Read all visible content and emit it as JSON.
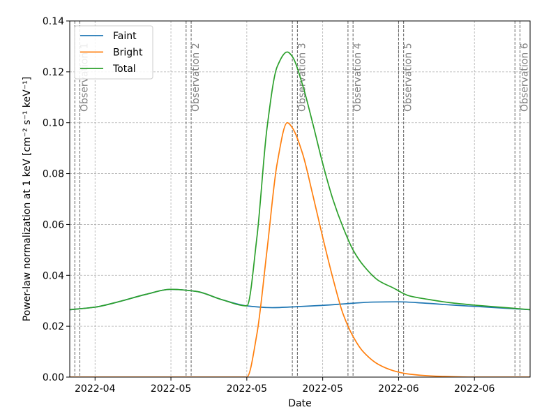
{
  "chart_data": {
    "type": "line",
    "xlabel": "Date",
    "ylabel": "Power-law normalization at 1 keV [cm⁻² s⁻¹ keV⁻¹]",
    "xlim": [
      "2022-03-27",
      "2022-06-26"
    ],
    "ylim": [
      0,
      0.14
    ],
    "grid": true,
    "grid_style": "dashed",
    "legend_position": "top-left",
    "x_ticks": [
      {
        "date": "2022-04-01",
        "label": "2022-04"
      },
      {
        "date": "2022-04-16",
        "label": "2022-05"
      },
      {
        "date": "2022-05-01",
        "label": "2022-05"
      },
      {
        "date": "2022-05-16",
        "label": "2022-05"
      },
      {
        "date": "2022-05-31",
        "label": "2022-06"
      },
      {
        "date": "2022-06-15",
        "label": "2022-06"
      }
    ],
    "y_ticks": [
      {
        "value": 0.0,
        "label": "0.00"
      },
      {
        "value": 0.02,
        "label": "0.02"
      },
      {
        "value": 0.04,
        "label": "0.04"
      },
      {
        "value": 0.06,
        "label": "0.06"
      },
      {
        "value": 0.08,
        "label": "0.08"
      },
      {
        "value": 0.1,
        "label": "0.10"
      },
      {
        "value": 0.12,
        "label": "0.12"
      },
      {
        "value": 0.14,
        "label": "0.14"
      }
    ],
    "observations": [
      {
        "label": "Observation 1",
        "start": "2022-03-28",
        "end": "2022-03-29"
      },
      {
        "label": "Observation 2",
        "start": "2022-04-19",
        "end": "2022-04-20"
      },
      {
        "label": "Observation 3",
        "start": "2022-05-10",
        "end": "2022-05-11"
      },
      {
        "label": "Observation 4",
        "start": "2022-05-21",
        "end": "2022-05-22"
      },
      {
        "label": "Observation 5",
        "start": "2022-05-31",
        "end": "2022-06-01"
      },
      {
        "label": "Observation 6",
        "start": "2022-06-23",
        "end": "2022-06-24"
      }
    ],
    "series": [
      {
        "name": "Faint",
        "color": "#1f77b4",
        "x": [
          "2022-03-27",
          "2022-04-01",
          "2022-04-06",
          "2022-04-11",
          "2022-04-16",
          "2022-04-21",
          "2022-04-26",
          "2022-05-01",
          "2022-05-06",
          "2022-05-11",
          "2022-05-16",
          "2022-05-21",
          "2022-05-26",
          "2022-05-31",
          "2022-06-05",
          "2022-06-10",
          "2022-06-15",
          "2022-06-20",
          "2022-06-26"
        ],
        "y": [
          0.0265,
          0.0275,
          0.0298,
          0.0325,
          0.0345,
          0.0337,
          0.0305,
          0.028,
          0.0273,
          0.0277,
          0.0282,
          0.0289,
          0.0295,
          0.0296,
          0.0291,
          0.0284,
          0.0278,
          0.0272,
          0.0265
        ]
      },
      {
        "name": "Bright",
        "color": "#ff7f0e",
        "x": [
          "2022-03-27",
          "2022-04-30",
          "2022-05-01",
          "2022-05-03",
          "2022-05-05",
          "2022-05-07",
          "2022-05-09",
          "2022-05-10",
          "2022-05-12",
          "2022-05-14",
          "2022-05-16",
          "2022-05-18",
          "2022-05-20",
          "2022-05-22",
          "2022-05-24",
          "2022-05-27",
          "2022-05-30",
          "2022-06-02",
          "2022-06-06",
          "2022-06-10",
          "2022-06-15",
          "2022-06-20",
          "2022-06-26"
        ],
        "y": [
          0.0,
          0.0,
          0.0,
          0.017,
          0.05,
          0.084,
          0.1,
          0.098,
          0.088,
          0.072,
          0.055,
          0.039,
          0.025,
          0.016,
          0.01,
          0.005,
          0.0025,
          0.0012,
          0.0005,
          0.0002,
          0.0,
          0.0,
          0.0
        ]
      },
      {
        "name": "Total",
        "color": "#2ca02c",
        "x": [
          "2022-03-27",
          "2022-04-01",
          "2022-04-06",
          "2022-04-11",
          "2022-04-16",
          "2022-04-21",
          "2022-04-26",
          "2022-05-01",
          "2022-05-03",
          "2022-05-05",
          "2022-05-07",
          "2022-05-09",
          "2022-05-10",
          "2022-05-12",
          "2022-05-14",
          "2022-05-16",
          "2022-05-18",
          "2022-05-20",
          "2022-05-22",
          "2022-05-24",
          "2022-05-27",
          "2022-05-30",
          "2022-06-02",
          "2022-06-06",
          "2022-06-10",
          "2022-06-15",
          "2022-06-20",
          "2022-06-26"
        ],
        "y": [
          0.0265,
          0.0275,
          0.0298,
          0.0325,
          0.0345,
          0.0337,
          0.0305,
          0.028,
          0.055,
          0.098,
          0.122,
          0.1278,
          0.126,
          0.115,
          0.1,
          0.084,
          0.07,
          0.059,
          0.05,
          0.044,
          0.038,
          0.035,
          0.032,
          0.0305,
          0.0293,
          0.0283,
          0.0275,
          0.0265
        ]
      }
    ]
  }
}
